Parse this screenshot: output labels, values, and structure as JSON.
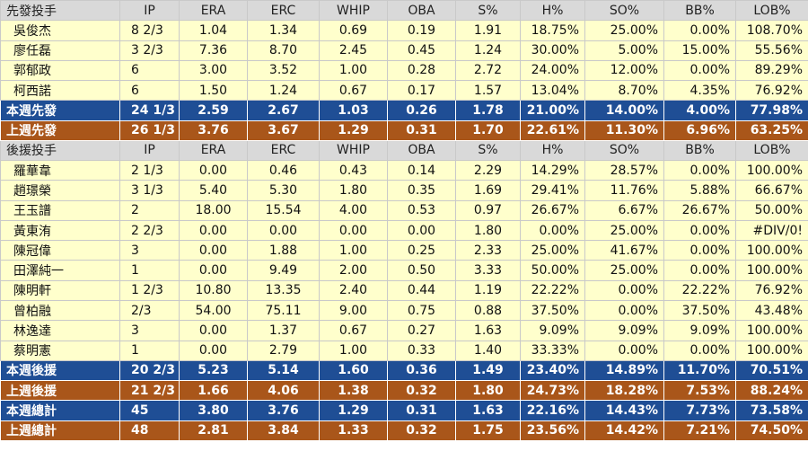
{
  "colors": {
    "header_bg": "#d9d9d9",
    "row_bg": "#ffffcc",
    "summary_blue": "#1f4e95",
    "summary_brown": "#a9561a"
  },
  "sections": [
    {
      "header": [
        "先發投手",
        "IP",
        "ERA",
        "ERC",
        "WHIP",
        "OBA",
        "S%",
        "H%",
        "SO%",
        "BB%",
        "LOB%"
      ],
      "rows": [
        [
          "吳俊杰",
          "8 2/3",
          "1.04",
          "1.34",
          "0.69",
          "0.19",
          "1.91",
          "18.75%",
          "25.00%",
          "0.00%",
          "108.70%"
        ],
        [
          "廖任磊",
          "3 2/3",
          "7.36",
          "8.70",
          "2.45",
          "0.45",
          "1.24",
          "30.00%",
          "5.00%",
          "15.00%",
          "55.56%"
        ],
        [
          "郭郁政",
          "6",
          "3.00",
          "3.52",
          "1.00",
          "0.28",
          "2.72",
          "24.00%",
          "12.00%",
          "0.00%",
          "89.29%"
        ],
        [
          "柯西諾",
          "6",
          "1.50",
          "1.24",
          "0.67",
          "0.17",
          "1.57",
          "13.04%",
          "8.70%",
          "4.35%",
          "76.92%"
        ]
      ],
      "summaries": [
        {
          "style": "blue",
          "cells": [
            "本週先發",
            "24 1/3",
            "2.59",
            "2.67",
            "1.03",
            "0.26",
            "1.78",
            "21.00%",
            "14.00%",
            "4.00%",
            "77.98%"
          ]
        },
        {
          "style": "brown",
          "cells": [
            "上週先發",
            "26 1/3",
            "3.76",
            "3.67",
            "1.29",
            "0.31",
            "1.70",
            "22.61%",
            "11.30%",
            "6.96%",
            "63.25%"
          ]
        }
      ]
    },
    {
      "header": [
        "後援投手",
        "IP",
        "ERA",
        "ERC",
        "WHIP",
        "OBA",
        "S%",
        "H%",
        "SO%",
        "BB%",
        "LOB%"
      ],
      "rows": [
        [
          "羅華韋",
          "2 1/3",
          "0.00",
          "0.46",
          "0.43",
          "0.14",
          "2.29",
          "14.29%",
          "28.57%",
          "0.00%",
          "100.00%"
        ],
        [
          "趙璟榮",
          "3 1/3",
          "5.40",
          "5.30",
          "1.80",
          "0.35",
          "1.69",
          "29.41%",
          "11.76%",
          "5.88%",
          "66.67%"
        ],
        [
          "王玉譜",
          "2",
          "18.00",
          "15.54",
          "4.00",
          "0.53",
          "0.97",
          "26.67%",
          "6.67%",
          "26.67%",
          "50.00%"
        ],
        [
          "黃東洧",
          "2 2/3",
          "0.00",
          "0.00",
          "0.00",
          "0.00",
          "1.80",
          "0.00%",
          "25.00%",
          "0.00%",
          "#DIV/0!"
        ],
        [
          "陳冠偉",
          "3",
          "0.00",
          "1.88",
          "1.00",
          "0.25",
          "2.33",
          "25.00%",
          "41.67%",
          "0.00%",
          "100.00%"
        ],
        [
          "田澤純一",
          "1",
          "0.00",
          "9.49",
          "2.00",
          "0.50",
          "3.33",
          "50.00%",
          "25.00%",
          "0.00%",
          "100.00%"
        ],
        [
          "陳明軒",
          "1 2/3",
          "10.80",
          "13.35",
          "2.40",
          "0.44",
          "1.19",
          "22.22%",
          "0.00%",
          "22.22%",
          "76.92%"
        ],
        [
          "曾柏融",
          "2/3",
          "54.00",
          "75.11",
          "9.00",
          "0.75",
          "0.88",
          "37.50%",
          "0.00%",
          "37.50%",
          "43.48%"
        ],
        [
          "林逸達",
          "3",
          "0.00",
          "1.37",
          "0.67",
          "0.27",
          "1.63",
          "9.09%",
          "9.09%",
          "9.09%",
          "100.00%"
        ],
        [
          "蔡明憲",
          "1",
          "0.00",
          "2.79",
          "1.00",
          "0.33",
          "1.40",
          "33.33%",
          "0.00%",
          "0.00%",
          "100.00%"
        ]
      ],
      "summaries": [
        {
          "style": "blue",
          "cells": [
            "本週後援",
            "20 2/3",
            "5.23",
            "5.14",
            "1.60",
            "0.36",
            "1.49",
            "23.40%",
            "14.89%",
            "11.70%",
            "70.51%"
          ]
        },
        {
          "style": "brown",
          "cells": [
            "上週後援",
            "21 2/3",
            "1.66",
            "4.06",
            "1.38",
            "0.32",
            "1.80",
            "24.73%",
            "18.28%",
            "7.53%",
            "88.24%"
          ]
        },
        {
          "style": "blue",
          "cells": [
            "本週總計",
            "45",
            "3.80",
            "3.76",
            "1.29",
            "0.31",
            "1.63",
            "22.16%",
            "14.43%",
            "7.73%",
            "73.58%"
          ]
        },
        {
          "style": "brown",
          "cells": [
            "上週總計",
            "48",
            "2.81",
            "3.84",
            "1.33",
            "0.32",
            "1.75",
            "23.56%",
            "14.42%",
            "7.21%",
            "74.50%"
          ]
        }
      ]
    }
  ]
}
